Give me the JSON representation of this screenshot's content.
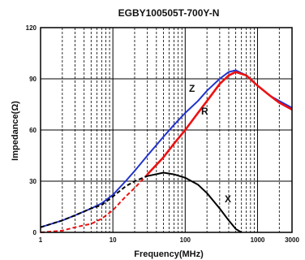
{
  "chart_data": {
    "type": "line",
    "title": "EGBY100505T-700Y-N",
    "xlabel": "Frequency(MHz)",
    "ylabel": "Impedance(Ω)",
    "xscale": "log",
    "xlim": [
      1,
      3000
    ],
    "ylim": [
      0,
      120
    ],
    "x_ticks": [
      {
        "value": 1,
        "label": "1"
      },
      {
        "value": 10,
        "label": "10"
      },
      {
        "value": 100,
        "label": "100"
      },
      {
        "value": 1000,
        "label": "1000"
      },
      {
        "value": 3000,
        "label": "3000"
      }
    ],
    "y_ticks": [
      {
        "value": 0,
        "label": "0"
      },
      {
        "value": 30,
        "label": "30"
      },
      {
        "value": 60,
        "label": "60"
      },
      {
        "value": 90,
        "label": "90"
      },
      {
        "value": 120,
        "label": "120"
      }
    ],
    "grid": true,
    "series": [
      {
        "name": "Z",
        "color": "#2233cc",
        "x": [
          1,
          2,
          3,
          5,
          7,
          10,
          15,
          20,
          30,
          50,
          70,
          100,
          150,
          200,
          300,
          400,
          500,
          700,
          1000,
          1500,
          2000,
          3000
        ],
        "values": [
          3,
          7,
          10,
          14,
          17,
          22,
          30,
          36,
          45,
          56,
          63,
          70,
          77,
          83,
          90,
          94,
          95,
          92,
          86,
          80,
          77,
          73
        ]
      },
      {
        "name": "R",
        "color": "#ee1111",
        "x": [
          1,
          2,
          3,
          5,
          7,
          10,
          15,
          20,
          30,
          50,
          70,
          100,
          150,
          200,
          300,
          400,
          500,
          700,
          1000,
          1500,
          2000,
          3000
        ],
        "values": [
          0,
          1,
          3,
          5,
          8,
          13,
          21,
          26,
          34,
          44,
          52,
          60,
          70,
          77,
          87,
          92,
          94,
          92,
          86,
          80,
          76,
          72
        ]
      },
      {
        "name": "X",
        "color": "#000000",
        "x": [
          1,
          2,
          3,
          5,
          7,
          10,
          15,
          20,
          30,
          50,
          70,
          100,
          150,
          200,
          300,
          400,
          500,
          600
        ],
        "values": [
          3,
          7,
          10,
          14,
          16,
          21,
          27,
          30,
          33,
          35,
          34,
          32,
          28,
          23,
          14,
          7,
          2,
          0
        ]
      }
    ]
  }
}
